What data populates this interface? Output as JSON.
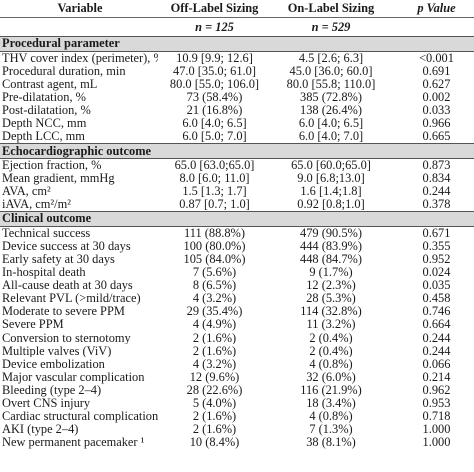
{
  "header": {
    "variable": "Variable",
    "off_label": "Off-Label Sizing",
    "on_label": "On-Label Sizing",
    "p_value": "p Value",
    "n_off": "n = 125",
    "n_on": "n = 529"
  },
  "sections": [
    {
      "title": "Procedural parameter",
      "rows": [
        {
          "label": "THV cover index (perimeter), %",
          "off": "10.9 [9.9; 12.6]",
          "on": "4.5 [2.6; 6.3]",
          "p": "<0.001"
        },
        {
          "label": "Procedural duration, min",
          "off": "47.0 [35.0; 61.0]",
          "on": "45.0 [36.0; 60.0]",
          "p": "0.691"
        },
        {
          "label": "Contrast agent, mL",
          "off": "80.0 [55.0; 106.0]",
          "on": "80.0 [55.8; 110.0]",
          "p": "0.627"
        },
        {
          "label": "Pre-dilatation, %",
          "off": "73 (58.4%)",
          "on": "385 (72.8%)",
          "p": "0.002"
        },
        {
          "label": "Post-dilatation, %",
          "off": "21 (16.8%)",
          "on": "138 (26.4%)",
          "p": "0.033"
        },
        {
          "label": "Depth NCC, mm",
          "off": "6.0 [4.0; 6.5]",
          "on": "6.0 [4.0; 6.5]",
          "p": "0.966"
        },
        {
          "label": "Depth LCC, mm",
          "off": "6.0 [5.0; 7.0]",
          "on": "6.0 [4.0; 7.0]",
          "p": "0.665"
        }
      ]
    },
    {
      "title": "Echocardiographic outcome",
      "rows": [
        {
          "label": "Ejection fraction, %",
          "off": "65.0 [63.0;65.0]",
          "on": "65.0 [60.0;65.0]",
          "p": "0.873"
        },
        {
          "label": "Mean gradient, mmHg",
          "off": "8.0 [6.0; 11.0]",
          "on": "9.0 [6.8;13.0]",
          "p": "0.834"
        },
        {
          "label": "AVA, cm²",
          "off": "1.5 [1.3; 1.7]",
          "on": "1.6 [1.4;1.8]",
          "p": "0.244"
        },
        {
          "label": "iAVA, cm²/m²",
          "off": "0.87 [0.7; 1.0]",
          "on": "0.92 [0.8;1.0]",
          "p": "0.378"
        }
      ]
    },
    {
      "title": "Clinical outcome",
      "rows": [
        {
          "label": "Technical success",
          "off": "111 (88.8%)",
          "on": "479 (90.5%)",
          "p": "0.671"
        },
        {
          "label": "Device success at 30 days",
          "off": "100 (80.0%)",
          "on": "444 (83.9%)",
          "p": "0.355"
        },
        {
          "label": "Early safety at 30 days",
          "off": "105 (84.0%)",
          "on": "448 (84.7%)",
          "p": "0.952"
        },
        {
          "label": "In-hospital death",
          "off": "7 (5.6%)",
          "on": "9 (1.7%)",
          "p": "0.024"
        },
        {
          "label": "All-cause death at 30 days",
          "off": "8 (6.5%)",
          "on": "12 (2.3%)",
          "p": "0.035"
        },
        {
          "label": "Relevant PVL (>mild/trace)",
          "off": "4 (3.2%)",
          "on": "28 (5.3%)",
          "p": "0.458"
        },
        {
          "label": "Moderate to severe PPM",
          "off": "29 (35.4%)",
          "on": "114 (32.8%)",
          "p": "0.746"
        },
        {
          "label": "Severe PPM",
          "off": "4 (4.9%)",
          "on": "11 (3.2%)",
          "p": "0.664"
        },
        {
          "label": "Conversion to sternotomy",
          "off": "2 (1.6%)",
          "on": "2 (0.4%)",
          "p": "0.244"
        },
        {
          "label": "Multiple valves (ViV)",
          "off": "2 (1.6%)",
          "on": "2 (0.4%)",
          "p": "0.244"
        },
        {
          "label": "Device embolization",
          "off": "4 (3.2%)",
          "on": "4 (0.8%)",
          "p": "0.066"
        },
        {
          "label": "Major vascular complication",
          "off": "12 (9.6%)",
          "on": "32 (6.0%)",
          "p": "0.214"
        },
        {
          "label": "Bleeding (type 2–4)",
          "off": "28 (22.6%)",
          "on": "116 (21.9%)",
          "p": "0.962"
        },
        {
          "label": "Overt CNS injury",
          "off": "5 (4.0%)",
          "on": "18 (3.4%)",
          "p": "0.953"
        },
        {
          "label": "Cardiac structural complication",
          "off": "2 (1.6%)",
          "on": "4 (0.8%)",
          "p": "0.718"
        },
        {
          "label": "AKI (type 2–4)",
          "off": "2 (1.6%)",
          "on": "7 (1.3%)",
          "p": "1.000"
        },
        {
          "label": "New permanent pacemaker ¹",
          "off": "10 (8.4%)",
          "on": "38 (8.1%)",
          "p": "1.000"
        }
      ]
    }
  ]
}
